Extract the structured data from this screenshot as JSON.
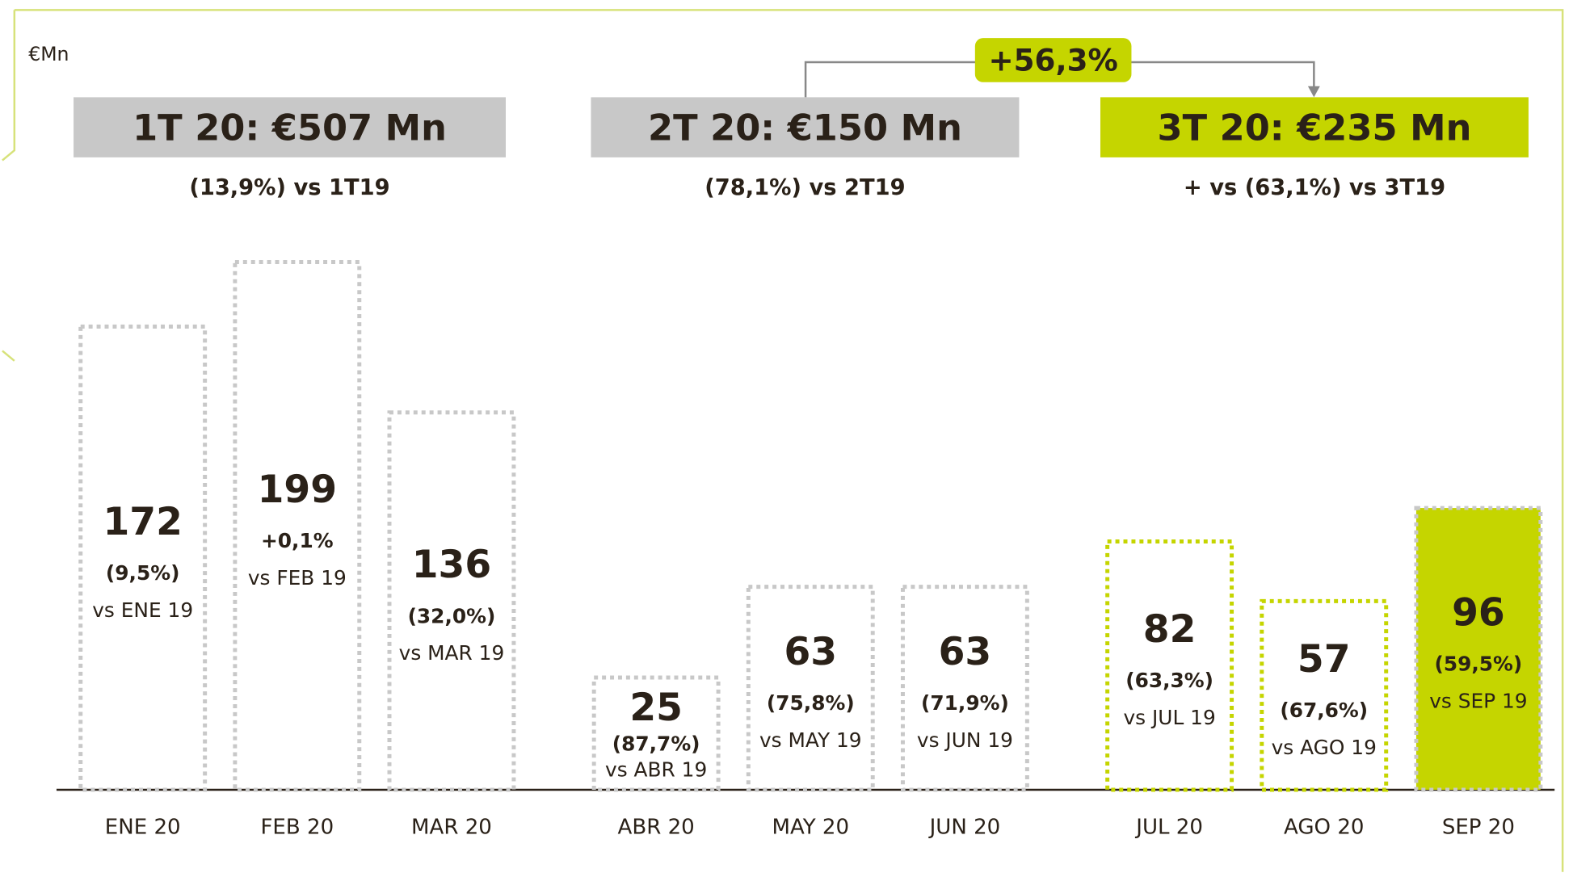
{
  "chart_data": {
    "type": "bar",
    "unit": "€Mn",
    "categories": [
      "ENE 20",
      "FEB 20",
      "MAR 20",
      "ABR 20",
      "MAY 20",
      "JUN 20",
      "JUL 20",
      "AGO 20",
      "SEP 20"
    ],
    "values": [
      172,
      199,
      136,
      25,
      63,
      63,
      82,
      57,
      96
    ],
    "changes": [
      "(9,5%)",
      "+0,1%",
      "(32,0%)",
      "(87,7%)",
      "(75,8%)",
      "(71,9%)",
      "(63,3%)",
      "(67,6%)",
      "(59,5%)"
    ],
    "comparisons": [
      "vs ENE 19",
      "vs FEB 19",
      "vs MAR 19",
      "vs ABR 19",
      "vs MAY 19",
      "vs JUN 19",
      "vs JUL 19",
      "vs AGO 19",
      "vs SEP 19"
    ],
    "border_colors": [
      "#c8c8c8",
      "#c8c8c8",
      "#c8c8c8",
      "#c8c8c8",
      "#c8c8c8",
      "#c8c8c8",
      "#c5d500",
      "#c5d500",
      "#c8c8c8"
    ],
    "fill_colors": [
      null,
      null,
      null,
      null,
      null,
      null,
      null,
      null,
      "#c5d500"
    ],
    "ylim": [
      -22,
      208
    ],
    "quarters": [
      {
        "title": "1T 20: €507 Mn",
        "subtitle": "(13,9%) vs 1T19",
        "color": "#c8c8c8"
      },
      {
        "title": "2T 20: €150 Mn",
        "subtitle": "(78,1%) vs 2T19",
        "color": "#c8c8c8"
      },
      {
        "title": "3T 20: €235 Mn",
        "subtitle": "+ vs (63,1%) vs 3T19",
        "color": "#c5d500"
      }
    ],
    "annotation": "+56,3%"
  }
}
